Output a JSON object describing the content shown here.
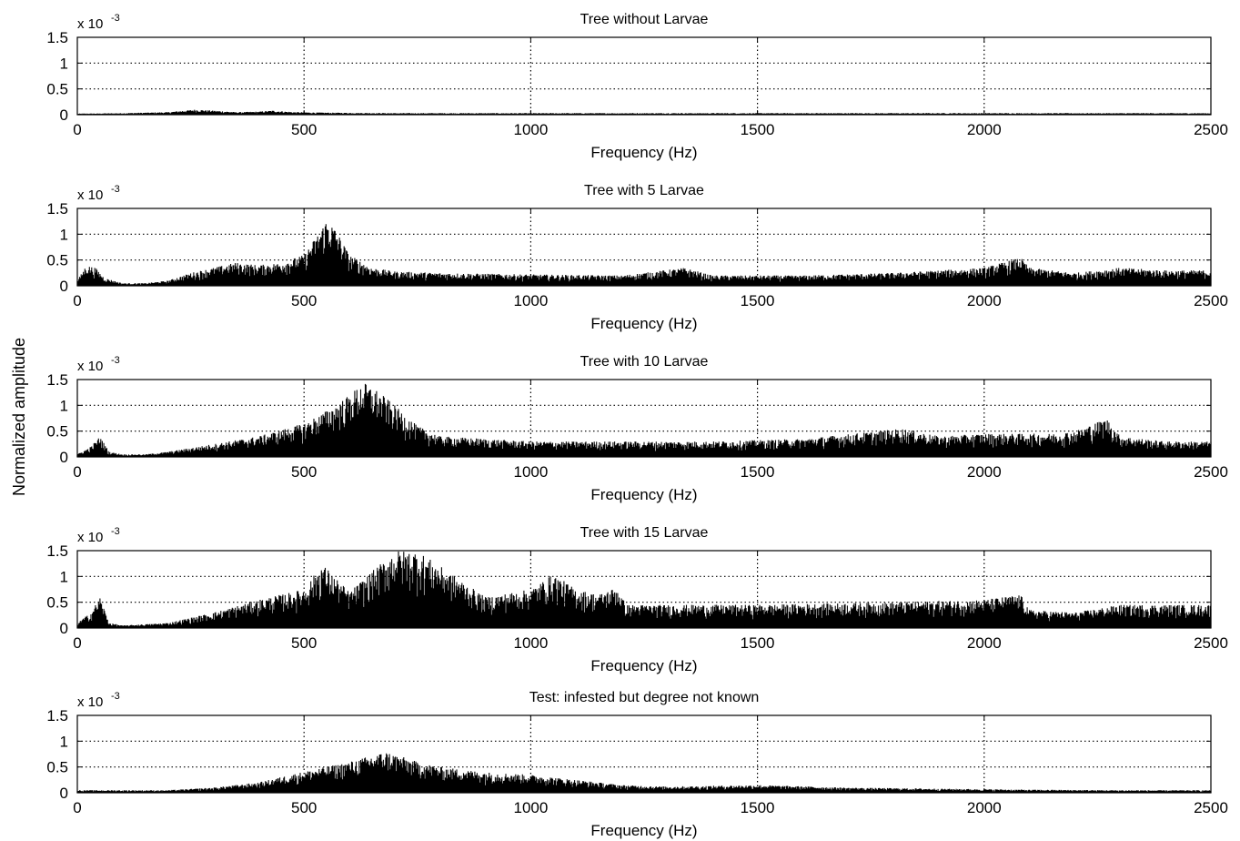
{
  "figure": {
    "ylabel": "Normalized amplitude"
  },
  "chart_data": [
    {
      "type": "area",
      "title": "Tree without Larvae",
      "xlabel": "Frequency (Hz)",
      "y_scale_note": "x 10",
      "y_scale_exponent": "-3",
      "xlim": [
        0,
        2500
      ],
      "ylim": [
        0,
        1.5
      ],
      "x_ticks": [
        "0",
        "500",
        "1000",
        "1500",
        "2000",
        "2500"
      ],
      "y_ticks": [
        "0",
        "0.5",
        "1",
        "1.5"
      ],
      "grid": "dotted",
      "series": [
        {
          "x": [
            0,
            100,
            200,
            260,
            300,
            350,
            400,
            430,
            480,
            550,
            700,
            900,
            1200,
            1500,
            1800,
            2100,
            2300,
            2500
          ],
          "values": [
            0.02,
            0.03,
            0.05,
            0.1,
            0.08,
            0.05,
            0.06,
            0.08,
            0.05,
            0.04,
            0.03,
            0.03,
            0.03,
            0.03,
            0.03,
            0.03,
            0.03,
            0.03
          ]
        }
      ]
    },
    {
      "type": "area",
      "title": "Tree with 5 Larvae",
      "xlabel": "Frequency (Hz)",
      "y_scale_note": "x 10",
      "y_scale_exponent": "-3",
      "xlim": [
        0,
        2500
      ],
      "ylim": [
        0,
        1.5
      ],
      "x_ticks": [
        "0",
        "500",
        "1000",
        "1500",
        "2000",
        "2500"
      ],
      "y_ticks": [
        "0",
        "0.5",
        "1",
        "1.5"
      ],
      "grid": "dotted",
      "series": [
        {
          "x": [
            0,
            20,
            40,
            60,
            100,
            150,
            200,
            250,
            300,
            350,
            400,
            450,
            500,
            530,
            550,
            570,
            600,
            650,
            700,
            800,
            1000,
            1200,
            1340,
            1400,
            1600,
            1800,
            1900,
            2000,
            2080,
            2100,
            2200,
            2300,
            2400,
            2500
          ],
          "values": [
            0.1,
            0.4,
            0.35,
            0.15,
            0.05,
            0.05,
            0.1,
            0.25,
            0.35,
            0.45,
            0.4,
            0.45,
            0.6,
            1.0,
            1.3,
            1.1,
            0.6,
            0.35,
            0.28,
            0.25,
            0.22,
            0.2,
            0.35,
            0.2,
            0.2,
            0.25,
            0.3,
            0.35,
            0.55,
            0.35,
            0.25,
            0.35,
            0.3,
            0.3
          ]
        }
      ]
    },
    {
      "type": "area",
      "title": "Tree with 10 Larvae",
      "xlabel": "Frequency (Hz)",
      "y_scale_note": "x 10",
      "y_scale_exponent": "-3",
      "xlim": [
        0,
        2500
      ],
      "ylim": [
        0,
        1.5
      ],
      "x_ticks": [
        "0",
        "500",
        "1000",
        "1500",
        "2000",
        "2500"
      ],
      "y_ticks": [
        "0",
        "0.5",
        "1",
        "1.5"
      ],
      "grid": "dotted",
      "series": [
        {
          "x": [
            0,
            30,
            50,
            70,
            100,
            150,
            200,
            300,
            400,
            500,
            550,
            600,
            630,
            660,
            700,
            750,
            800,
            900,
            1000,
            1200,
            1400,
            1600,
            1820,
            1900,
            2000,
            2150,
            2200,
            2270,
            2300,
            2400,
            2500
          ],
          "values": [
            0.05,
            0.2,
            0.4,
            0.1,
            0.05,
            0.05,
            0.1,
            0.25,
            0.4,
            0.65,
            0.9,
            1.2,
            1.45,
            1.3,
            1.0,
            0.6,
            0.4,
            0.35,
            0.3,
            0.3,
            0.3,
            0.35,
            0.55,
            0.4,
            0.45,
            0.45,
            0.5,
            0.75,
            0.4,
            0.3,
            0.3
          ]
        }
      ]
    },
    {
      "type": "area",
      "title": "Tree with 15 Larvae",
      "xlabel": "Frequency (Hz)",
      "y_scale_note": "x 10",
      "y_scale_exponent": "-3",
      "xlim": [
        0,
        2500
      ],
      "ylim": [
        0,
        1.5
      ],
      "x_ticks": [
        "0",
        "500",
        "1000",
        "1500",
        "2000",
        "2500"
      ],
      "y_ticks": [
        "0",
        "0.5",
        "1",
        "1.5"
      ],
      "grid": "dotted",
      "series": [
        {
          "x": [
            0,
            30,
            50,
            70,
            100,
            200,
            300,
            400,
            500,
            540,
            600,
            650,
            700,
            750,
            800,
            900,
            1000,
            1050,
            1100,
            1150,
            1190,
            1210,
            1300,
            1500,
            1800,
            2000,
            2080,
            2100,
            2200,
            2300,
            2400,
            2500
          ],
          "values": [
            0.1,
            0.3,
            0.6,
            0.1,
            0.05,
            0.1,
            0.3,
            0.55,
            0.75,
            1.25,
            0.7,
            1.1,
            1.5,
            1.5,
            1.2,
            0.6,
            0.75,
            1.05,
            0.75,
            0.65,
            0.8,
            0.45,
            0.45,
            0.45,
            0.5,
            0.55,
            0.65,
            0.35,
            0.3,
            0.45,
            0.45,
            0.45
          ]
        }
      ]
    },
    {
      "type": "area",
      "title": "Test: infested but degree not known",
      "xlabel": "Frequency (Hz)",
      "y_scale_note": "x 10",
      "y_scale_exponent": "-3",
      "xlim": [
        0,
        2500
      ],
      "ylim": [
        0,
        1.5
      ],
      "x_ticks": [
        "0",
        "500",
        "1000",
        "1500",
        "2000",
        "2500"
      ],
      "y_ticks": [
        "0",
        "0.5",
        "1",
        "1.5"
      ],
      "grid": "dotted",
      "series": [
        {
          "x": [
            0,
            100,
            200,
            300,
            400,
            470,
            520,
            600,
            680,
            700,
            750,
            800,
            900,
            1000,
            1100,
            1200,
            1300,
            1500,
            1700,
            1900,
            2100,
            2300,
            2500
          ],
          "values": [
            0.05,
            0.05,
            0.05,
            0.1,
            0.2,
            0.35,
            0.45,
            0.6,
            0.8,
            0.75,
            0.6,
            0.5,
            0.4,
            0.35,
            0.25,
            0.15,
            0.12,
            0.15,
            0.1,
            0.08,
            0.06,
            0.05,
            0.05
          ]
        }
      ]
    }
  ]
}
